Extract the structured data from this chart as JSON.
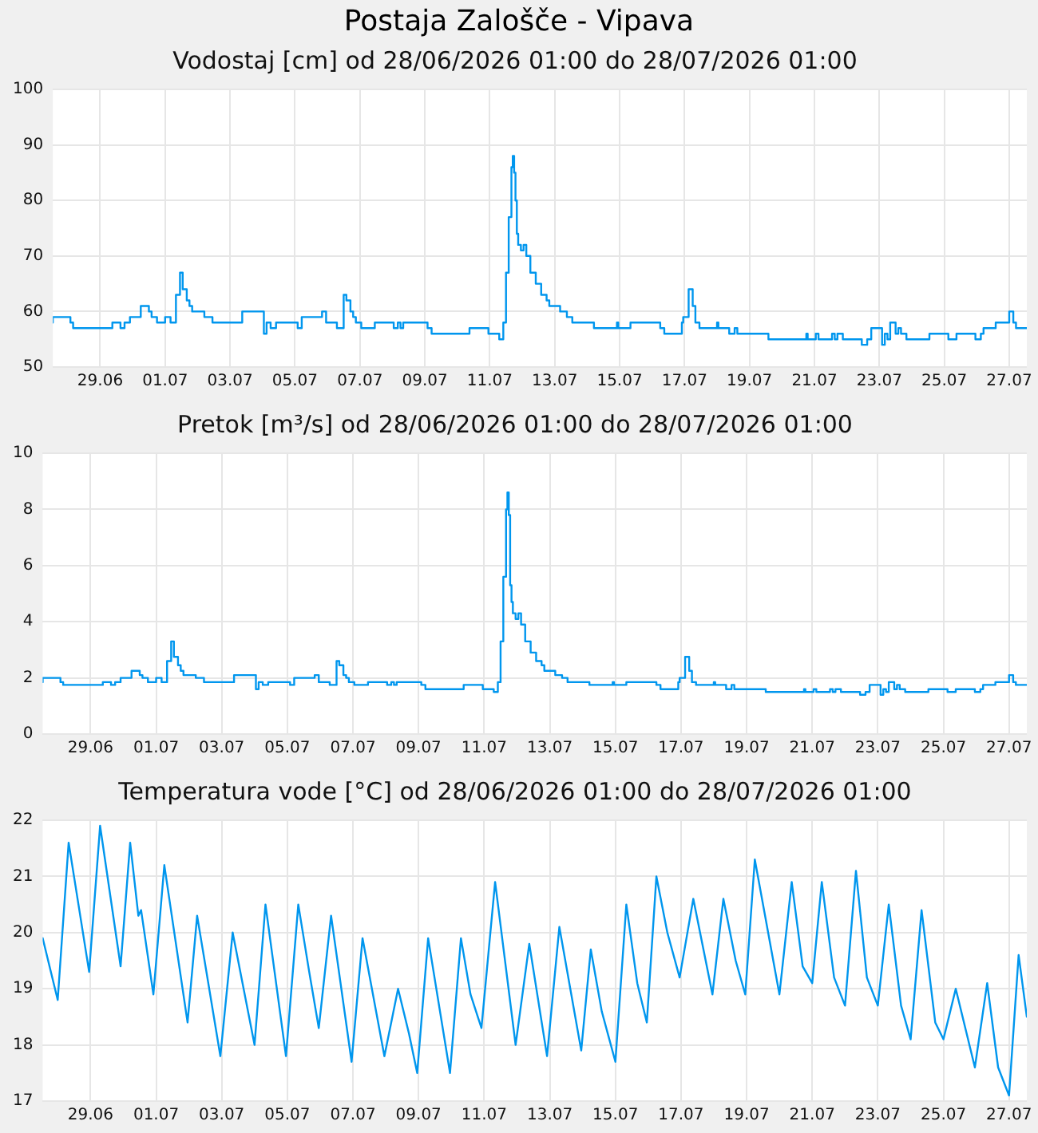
{
  "chart_data": [
    {
      "type": "step",
      "title": "Postaja Zalošče - Vipava",
      "subtitle": "Vodostaj [cm] od 28/06/2026 01:00 do 28/07/2026 01:00",
      "xlim": [
        "2026-06-28T01:00",
        "2026-07-28T01:00"
      ],
      "xticks": [
        {
          "value": "2026-06-29T12:00",
          "label": "29.06"
        },
        {
          "value": "2026-07-01T12:00",
          "label": "01.07"
        },
        {
          "value": "2026-07-03T12:00",
          "label": "03.07"
        },
        {
          "value": "2026-07-05T12:00",
          "label": "05.07"
        },
        {
          "value": "2026-07-07T12:00",
          "label": "07.07"
        },
        {
          "value": "2026-07-09T12:00",
          "label": "09.07"
        },
        {
          "value": "2026-07-11T12:00",
          "label": "11.07"
        },
        {
          "value": "2026-07-13T12:00",
          "label": "13.07"
        },
        {
          "value": "2026-07-15T12:00",
          "label": "15.07"
        },
        {
          "value": "2026-07-17T12:00",
          "label": "17.07"
        },
        {
          "value": "2026-07-19T12:00",
          "label": "19.07"
        },
        {
          "value": "2026-07-21T12:00",
          "label": "21.07"
        },
        {
          "value": "2026-07-23T12:00",
          "label": "23.07"
        },
        {
          "value": "2026-07-25T12:00",
          "label": "25.07"
        },
        {
          "value": "2026-07-27T12:00",
          "label": "27.07"
        }
      ],
      "ylim": [
        50,
        100
      ],
      "yticks": [
        50,
        60,
        70,
        80,
        90,
        100
      ],
      "grid": true,
      "series": [
        {
          "color": "#0096ee",
          "x": [
            "2026-06-28T01:00",
            "2026-06-28T14:00",
            "2026-06-28T16:00",
            "2026-06-29T21:00",
            "2026-06-30T03:00",
            "2026-06-30T06:00",
            "2026-06-30T10:00",
            "2026-06-30T18:00",
            "2026-07-01T00:00",
            "2026-07-01T02:00",
            "2026-07-01T06:00",
            "2026-07-01T12:00",
            "2026-07-01T16:00",
            "2026-07-01T20:00",
            "2026-07-01T23:00",
            "2026-07-02T01:00",
            "2026-07-02T04:00",
            "2026-07-02T06:00",
            "2026-07-02T08:00",
            "2026-07-02T17:00",
            "2026-07-02T23:00",
            "2026-07-03T21:00",
            "2026-07-04T13:00",
            "2026-07-04T15:00",
            "2026-07-04T18:00",
            "2026-07-04T22:00",
            "2026-07-05T14:00",
            "2026-07-05T17:00",
            "2026-07-06T08:00",
            "2026-07-06T11:00",
            "2026-07-06T19:00",
            "2026-07-07T00:00",
            "2026-07-07T02:00",
            "2026-07-07T05:00",
            "2026-07-07T07:00",
            "2026-07-07T09:00",
            "2026-07-07T13:00",
            "2026-07-07T23:00",
            "2026-07-08T13:00",
            "2026-07-08T16:00",
            "2026-07-08T18:00",
            "2026-07-08T20:00",
            "2026-07-09T14:00",
            "2026-07-09T17:00",
            "2026-07-10T21:00",
            "2026-07-11T11:00",
            "2026-07-11T19:00",
            "2026-07-11T22:00",
            "2026-07-12T00:00",
            "2026-07-12T02:00",
            "2026-07-12T04:00",
            "2026-07-12T05:00",
            "2026-07-12T06:00",
            "2026-07-12T07:00",
            "2026-07-12T08:00",
            "2026-07-12T09:00",
            "2026-07-12T11:00",
            "2026-07-12T13:00",
            "2026-07-12T15:00",
            "2026-07-12T18:00",
            "2026-07-12T22:00",
            "2026-07-13T02:00",
            "2026-07-13T06:00",
            "2026-07-13T08:00",
            "2026-07-13T16:00",
            "2026-07-13T21:00",
            "2026-07-14T01:00",
            "2026-07-14T17:00",
            "2026-07-15T10:00",
            "2026-07-15T11:00",
            "2026-07-15T20:00",
            "2026-07-16T18:00",
            "2026-07-16T21:00",
            "2026-07-17T10:00",
            "2026-07-17T11:00",
            "2026-07-17T15:00",
            "2026-07-17T18:00",
            "2026-07-17T20:00",
            "2026-07-17T23:00",
            "2026-07-18T12:00",
            "2026-07-18T13:00",
            "2026-07-18T21:00",
            "2026-07-19T01:00",
            "2026-07-19T03:00",
            "2026-07-20T02:00",
            "2026-07-21T06:00",
            "2026-07-21T07:00",
            "2026-07-21T13:00",
            "2026-07-21T15:00",
            "2026-07-22T01:00",
            "2026-07-22T03:00",
            "2026-07-22T05:00",
            "2026-07-22T09:00",
            "2026-07-22T23:00",
            "2026-07-23T03:00",
            "2026-07-23T06:00",
            "2026-07-23T14:00",
            "2026-07-23T16:00",
            "2026-07-23T18:00",
            "2026-07-23T20:00",
            "2026-07-24T00:00",
            "2026-07-24T02:00",
            "2026-07-24T04:00",
            "2026-07-24T08:00",
            "2026-07-25T01:00",
            "2026-07-25T15:00",
            "2026-07-25T21:00",
            "2026-07-26T11:00",
            "2026-07-26T15:00",
            "2026-07-26T17:00",
            "2026-07-27T02:00",
            "2026-07-27T12:00",
            "2026-07-27T15:00",
            "2026-07-27T17:00",
            "2026-07-28T00:00",
            "2026-07-28T01:00"
          ],
          "values": [
            58,
            59,
            58,
            57,
            58,
            57,
            58,
            59,
            61,
            60,
            59,
            58,
            59,
            58,
            63,
            67,
            64,
            62,
            61,
            60,
            59,
            58,
            60,
            56,
            58,
            57,
            58,
            57,
            59,
            60,
            58,
            57,
            63,
            62,
            60,
            59,
            58,
            57,
            58,
            57,
            58,
            57,
            58,
            57,
            56,
            57,
            56,
            55,
            58,
            67,
            77,
            86,
            88,
            85,
            80,
            74,
            72,
            71,
            72,
            70,
            67,
            65,
            63,
            62,
            61,
            60,
            59,
            58,
            57,
            58,
            57,
            58,
            57,
            56,
            58,
            59,
            64,
            61,
            58,
            57,
            58,
            57,
            56,
            57,
            56,
            55,
            56,
            55,
            56,
            55,
            56,
            55,
            56,
            55,
            54,
            55,
            57,
            54,
            56,
            55,
            58,
            56,
            57,
            56,
            55,
            56,
            55,
            56,
            55,
            56,
            57,
            58,
            60,
            58,
            57,
            57
          ]
        }
      ]
    },
    {
      "type": "step",
      "title": "Pretok [m³/s] od 28/06/2026 01:00 do 28/07/2026 01:00",
      "xlim": [
        "2026-06-28T01:00",
        "2026-07-28T01:00"
      ],
      "xticks": [
        {
          "value": "2026-06-29T12:00",
          "label": "29.06"
        },
        {
          "value": "2026-07-01T12:00",
          "label": "01.07"
        },
        {
          "value": "2026-07-03T12:00",
          "label": "03.07"
        },
        {
          "value": "2026-07-05T12:00",
          "label": "05.07"
        },
        {
          "value": "2026-07-07T12:00",
          "label": "07.07"
        },
        {
          "value": "2026-07-09T12:00",
          "label": "09.07"
        },
        {
          "value": "2026-07-11T12:00",
          "label": "11.07"
        },
        {
          "value": "2026-07-13T12:00",
          "label": "13.07"
        },
        {
          "value": "2026-07-15T12:00",
          "label": "15.07"
        },
        {
          "value": "2026-07-17T12:00",
          "label": "17.07"
        },
        {
          "value": "2026-07-19T12:00",
          "label": "19.07"
        },
        {
          "value": "2026-07-21T12:00",
          "label": "21.07"
        },
        {
          "value": "2026-07-23T12:00",
          "label": "23.07"
        },
        {
          "value": "2026-07-25T12:00",
          "label": "25.07"
        },
        {
          "value": "2026-07-27T12:00",
          "label": "27.07"
        }
      ],
      "ylim": [
        0,
        10
      ],
      "yticks": [
        0,
        2,
        4,
        6,
        8,
        10
      ],
      "grid": true,
      "series": [
        {
          "color": "#0096ee",
          "x": [
            "2026-06-28T01:00",
            "2026-06-28T14:00",
            "2026-06-28T16:00",
            "2026-06-29T21:00",
            "2026-06-30T03:00",
            "2026-06-30T06:00",
            "2026-06-30T10:00",
            "2026-06-30T18:00",
            "2026-07-01T00:00",
            "2026-07-01T02:00",
            "2026-07-01T06:00",
            "2026-07-01T12:00",
            "2026-07-01T16:00",
            "2026-07-01T20:00",
            "2026-07-01T23:00",
            "2026-07-02T01:00",
            "2026-07-02T04:00",
            "2026-07-02T06:00",
            "2026-07-02T08:00",
            "2026-07-02T17:00",
            "2026-07-02T23:00",
            "2026-07-03T21:00",
            "2026-07-04T13:00",
            "2026-07-04T15:00",
            "2026-07-04T18:00",
            "2026-07-04T22:00",
            "2026-07-05T14:00",
            "2026-07-05T17:00",
            "2026-07-06T08:00",
            "2026-07-06T11:00",
            "2026-07-06T19:00",
            "2026-07-07T00:00",
            "2026-07-07T02:00",
            "2026-07-07T05:00",
            "2026-07-07T07:00",
            "2026-07-07T09:00",
            "2026-07-07T13:00",
            "2026-07-07T23:00",
            "2026-07-08T13:00",
            "2026-07-08T16:00",
            "2026-07-08T18:00",
            "2026-07-08T20:00",
            "2026-07-09T14:00",
            "2026-07-09T17:00",
            "2026-07-10T21:00",
            "2026-07-11T11:00",
            "2026-07-11T19:00",
            "2026-07-11T22:00",
            "2026-07-12T00:00",
            "2026-07-12T02:00",
            "2026-07-12T04:00",
            "2026-07-12T05:00",
            "2026-07-12T06:00",
            "2026-07-12T07:00",
            "2026-07-12T08:00",
            "2026-07-12T09:00",
            "2026-07-12T11:00",
            "2026-07-12T13:00",
            "2026-07-12T15:00",
            "2026-07-12T18:00",
            "2026-07-12T22:00",
            "2026-07-13T02:00",
            "2026-07-13T06:00",
            "2026-07-13T08:00",
            "2026-07-13T16:00",
            "2026-07-13T21:00",
            "2026-07-14T01:00",
            "2026-07-14T17:00",
            "2026-07-15T10:00",
            "2026-07-15T11:00",
            "2026-07-15T20:00",
            "2026-07-16T18:00",
            "2026-07-16T21:00",
            "2026-07-17T10:00",
            "2026-07-17T11:00",
            "2026-07-17T15:00",
            "2026-07-17T18:00",
            "2026-07-17T20:00",
            "2026-07-17T23:00",
            "2026-07-18T12:00",
            "2026-07-18T13:00",
            "2026-07-18T21:00",
            "2026-07-19T01:00",
            "2026-07-19T03:00",
            "2026-07-20T02:00",
            "2026-07-21T06:00",
            "2026-07-21T07:00",
            "2026-07-21T13:00",
            "2026-07-21T15:00",
            "2026-07-22T01:00",
            "2026-07-22T03:00",
            "2026-07-22T05:00",
            "2026-07-22T09:00",
            "2026-07-22T23:00",
            "2026-07-23T03:00",
            "2026-07-23T06:00",
            "2026-07-23T14:00",
            "2026-07-23T16:00",
            "2026-07-23T18:00",
            "2026-07-23T20:00",
            "2026-07-24T00:00",
            "2026-07-24T02:00",
            "2026-07-24T04:00",
            "2026-07-24T08:00",
            "2026-07-25T01:00",
            "2026-07-25T15:00",
            "2026-07-25T21:00",
            "2026-07-26T11:00",
            "2026-07-26T15:00",
            "2026-07-26T17:00",
            "2026-07-27T02:00",
            "2026-07-27T12:00",
            "2026-07-27T15:00",
            "2026-07-27T17:00",
            "2026-07-28T00:00",
            "2026-07-28T01:00"
          ],
          "values": [
            1.85,
            2.0,
            1.85,
            1.75,
            1.85,
            1.75,
            1.85,
            2.0,
            2.25,
            2.1,
            2.0,
            1.85,
            2.0,
            1.85,
            2.6,
            3.3,
            2.75,
            2.45,
            2.25,
            2.1,
            2.0,
            1.85,
            2.1,
            1.6,
            1.85,
            1.75,
            1.85,
            1.75,
            2.0,
            2.1,
            1.85,
            1.75,
            2.6,
            2.45,
            2.1,
            2.0,
            1.85,
            1.75,
            1.85,
            1.75,
            1.85,
            1.75,
            1.85,
            1.75,
            1.6,
            1.75,
            1.6,
            1.5,
            1.85,
            3.3,
            5.6,
            8.0,
            8.6,
            7.8,
            5.3,
            4.7,
            4.3,
            4.1,
            4.3,
            3.9,
            3.3,
            2.9,
            2.6,
            2.45,
            2.25,
            2.1,
            2.0,
            1.85,
            1.75,
            1.85,
            1.75,
            1.85,
            1.75,
            1.6,
            1.85,
            2.0,
            2.75,
            2.25,
            1.85,
            1.75,
            1.85,
            1.75,
            1.6,
            1.75,
            1.6,
            1.5,
            1.6,
            1.5,
            1.6,
            1.5,
            1.6,
            1.5,
            1.6,
            1.5,
            1.4,
            1.5,
            1.75,
            1.4,
            1.6,
            1.5,
            1.85,
            1.6,
            1.75,
            1.6,
            1.5,
            1.6,
            1.5,
            1.6,
            1.5,
            1.6,
            1.75,
            1.85,
            2.1,
            1.85,
            1.75,
            1.75
          ]
        }
      ]
    },
    {
      "type": "line",
      "title": "Temperatura vode [°C] od 28/06/2026 01:00 do 28/07/2026 01:00",
      "xlim": [
        "2026-06-28T01:00",
        "2026-07-28T01:00"
      ],
      "xticks": [
        {
          "value": "2026-06-29T12:00",
          "label": "29.06"
        },
        {
          "value": "2026-07-01T12:00",
          "label": "01.07"
        },
        {
          "value": "2026-07-03T12:00",
          "label": "03.07"
        },
        {
          "value": "2026-07-05T12:00",
          "label": "05.07"
        },
        {
          "value": "2026-07-07T12:00",
          "label": "07.07"
        },
        {
          "value": "2026-07-09T12:00",
          "label": "09.07"
        },
        {
          "value": "2026-07-11T12:00",
          "label": "11.07"
        },
        {
          "value": "2026-07-13T12:00",
          "label": "13.07"
        },
        {
          "value": "2026-07-15T12:00",
          "label": "15.07"
        },
        {
          "value": "2026-07-17T12:00",
          "label": "17.07"
        },
        {
          "value": "2026-07-19T12:00",
          "label": "19.07"
        },
        {
          "value": "2026-07-21T12:00",
          "label": "21.07"
        },
        {
          "value": "2026-07-23T12:00",
          "label": "23.07"
        },
        {
          "value": "2026-07-25T12:00",
          "label": "25.07"
        },
        {
          "value": "2026-07-27T12:00",
          "label": "27.07"
        }
      ],
      "ylim": [
        17,
        22
      ],
      "yticks": [
        17,
        18,
        19,
        20,
        21,
        22
      ],
      "grid": true,
      "series": [
        {
          "color": "#0096ee",
          "x": [
            "2026-06-28T01:00",
            "2026-06-28T12:00",
            "2026-06-28T20:00",
            "2026-06-29T11:00",
            "2026-06-29T19:00",
            "2026-06-30T10:00",
            "2026-06-30T17:00",
            "2026-06-30T23:00",
            "2026-07-01T01:00",
            "2026-07-01T10:00",
            "2026-07-01T18:00",
            "2026-07-02T11:00",
            "2026-07-02T18:00",
            "2026-07-03T11:00",
            "2026-07-03T20:00",
            "2026-07-04T12:00",
            "2026-07-04T20:00",
            "2026-07-05T11:00",
            "2026-07-05T20:00",
            "2026-07-06T04:00",
            "2026-07-06T11:00",
            "2026-07-06T20:00",
            "2026-07-07T11:00",
            "2026-07-07T19:00",
            "2026-07-08T11:00",
            "2026-07-08T21:00",
            "2026-07-09T05:00",
            "2026-07-09T11:00",
            "2026-07-09T19:00",
            "2026-07-10T11:00",
            "2026-07-10T19:00",
            "2026-07-11T02:00",
            "2026-07-11T10:00",
            "2026-07-11T20:00",
            "2026-07-12T11:00",
            "2026-07-12T21:00",
            "2026-07-13T10:00",
            "2026-07-13T19:00",
            "2026-07-14T11:00",
            "2026-07-14T18:00",
            "2026-07-15T02:00",
            "2026-07-15T12:00",
            "2026-07-15T20:00",
            "2026-07-16T04:00",
            "2026-07-16T11:00",
            "2026-07-16T18:00",
            "2026-07-17T02:00",
            "2026-07-17T11:00",
            "2026-07-17T21:00",
            "2026-07-18T11:00",
            "2026-07-18T19:00",
            "2026-07-19T04:00",
            "2026-07-19T11:00",
            "2026-07-19T18:00",
            "2026-07-20T12:00",
            "2026-07-20T21:00",
            "2026-07-21T05:00",
            "2026-07-21T12:00",
            "2026-07-21T19:00",
            "2026-07-22T04:00",
            "2026-07-22T12:00",
            "2026-07-22T20:00",
            "2026-07-23T04:00",
            "2026-07-23T12:00",
            "2026-07-23T20:00",
            "2026-07-24T05:00",
            "2026-07-24T12:00",
            "2026-07-24T20:00",
            "2026-07-25T06:00",
            "2026-07-25T12:00",
            "2026-07-25T21:00",
            "2026-07-26T05:00",
            "2026-07-26T11:00",
            "2026-07-26T20:00",
            "2026-07-27T04:00",
            "2026-07-27T12:00",
            "2026-07-27T19:00",
            "2026-07-28T01:00"
          ],
          "values": [
            19.9,
            18.8,
            21.6,
            19.3,
            21.9,
            19.4,
            21.6,
            20.3,
            20.4,
            18.9,
            21.2,
            18.4,
            20.3,
            17.8,
            20.0,
            18.0,
            20.5,
            17.8,
            20.5,
            19.3,
            18.3,
            20.3,
            17.7,
            19.9,
            17.8,
            19.0,
            18.2,
            17.5,
            19.9,
            17.5,
            19.9,
            18.9,
            18.3,
            20.9,
            18.0,
            19.8,
            17.8,
            20.1,
            17.9,
            19.7,
            18.6,
            17.7,
            20.5,
            19.1,
            18.4,
            21.0,
            20.0,
            19.2,
            20.6,
            18.9,
            20.6,
            19.5,
            18.9,
            21.3,
            18.9,
            20.9,
            19.4,
            19.1,
            20.9,
            19.2,
            18.7,
            21.1,
            19.2,
            18.7,
            20.5,
            18.7,
            18.1,
            20.4,
            18.4,
            18.1,
            19.0,
            18.2,
            17.6,
            19.1,
            17.6,
            17.1,
            19.6,
            18.5
          ]
        }
      ]
    }
  ]
}
